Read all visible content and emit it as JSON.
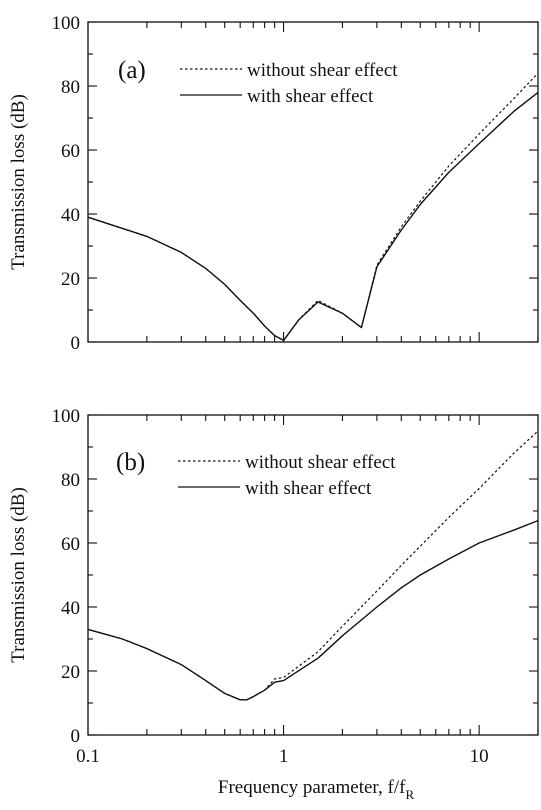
{
  "chart_data": [
    {
      "type": "line",
      "panel_label": "(a)",
      "ylabel": "Transmission loss (dB)",
      "xlabel": "",
      "xscale": "log",
      "xlim": [
        0.1,
        20
      ],
      "ylim": [
        0,
        100
      ],
      "yticks": [
        "0",
        "20",
        "40",
        "60",
        "80",
        "100"
      ],
      "xticks": [],
      "legend_position": "top-left",
      "series": [
        {
          "name": "without shear effect",
          "style": "dotted",
          "x": [
            0.1,
            0.2,
            0.3,
            0.4,
            0.5,
            0.6,
            0.7,
            0.8,
            0.9,
            1.0,
            1.2,
            1.5,
            2.0,
            2.5,
            3.0,
            4.0,
            5.0,
            7.0,
            10.0,
            15.0,
            20.0
          ],
          "y": [
            39,
            33,
            28,
            23,
            18,
            13,
            9,
            5,
            2,
            0.5,
            7,
            13,
            9,
            4.5,
            24,
            36,
            44,
            55,
            65,
            76,
            84
          ]
        },
        {
          "name": "with shear effect",
          "style": "solid",
          "x": [
            0.1,
            0.2,
            0.3,
            0.4,
            0.5,
            0.6,
            0.7,
            0.8,
            0.9,
            1.0,
            1.2,
            1.5,
            2.0,
            2.5,
            3.0,
            4.0,
            5.0,
            7.0,
            10.0,
            15.0,
            20.0
          ],
          "y": [
            39,
            33,
            28,
            23,
            18,
            13,
            9,
            5,
            2,
            0.5,
            7,
            12.5,
            9,
            4.5,
            23.5,
            35,
            43,
            53,
            62,
            72,
            78
          ]
        }
      ]
    },
    {
      "type": "line",
      "panel_label": "(b)",
      "ylabel": "Transmission loss (dB)",
      "xlabel": "Frequency parameter, f/f",
      "xlabel_sub": "R",
      "xscale": "log",
      "xlim": [
        0.1,
        20
      ],
      "ylim": [
        0,
        100
      ],
      "yticks": [
        "0",
        "20",
        "40",
        "60",
        "80",
        "100"
      ],
      "xticks": [
        "0.1",
        "1",
        "10"
      ],
      "legend_position": "top-left",
      "series": [
        {
          "name": "without shear effect",
          "style": "dotted",
          "x": [
            0.1,
            0.15,
            0.2,
            0.3,
            0.4,
            0.5,
            0.6,
            0.65,
            0.7,
            0.8,
            0.9,
            1.0,
            1.5,
            2.0,
            3.0,
            4.0,
            5.0,
            7.0,
            10.0,
            15.0,
            20.0
          ],
          "y": [
            33,
            30,
            27,
            22,
            17,
            13,
            11,
            11,
            12,
            14,
            17.5,
            18,
            26,
            34,
            45,
            53,
            59,
            68,
            77,
            88,
            95
          ]
        },
        {
          "name": "with shear effect",
          "style": "solid",
          "x": [
            0.1,
            0.15,
            0.2,
            0.3,
            0.4,
            0.5,
            0.6,
            0.65,
            0.7,
            0.8,
            0.9,
            1.0,
            1.5,
            2.0,
            3.0,
            4.0,
            5.0,
            7.0,
            10.0,
            15.0,
            20.0
          ],
          "y": [
            33,
            30,
            27,
            22,
            17,
            13,
            11,
            11,
            12,
            14,
            16.5,
            17,
            24,
            31,
            40,
            46,
            50,
            55,
            60,
            64,
            67
          ]
        }
      ]
    }
  ]
}
